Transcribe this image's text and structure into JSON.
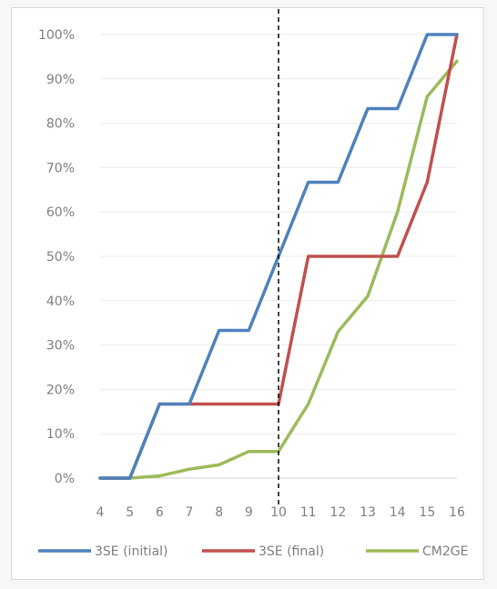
{
  "chart_data": {
    "type": "line",
    "title": "",
    "xlabel": "",
    "ylabel": "",
    "x": [
      4,
      5,
      6,
      7,
      8,
      9,
      10,
      11,
      12,
      13,
      14,
      15,
      16
    ],
    "xlim": [
      4,
      16
    ],
    "ylim": [
      0,
      100
    ],
    "y_ticks": [
      "0%",
      "10%",
      "20%",
      "30%",
      "40%",
      "50%",
      "60%",
      "70%",
      "80%",
      "90%",
      "100%"
    ],
    "x_ticks": [
      "4",
      "5",
      "6",
      "7",
      "8",
      "9",
      "10",
      "11",
      "12",
      "13",
      "14",
      "15",
      "16"
    ],
    "grid": true,
    "legend_position": "bottom",
    "reference_line": {
      "x": 10,
      "style": "dashed",
      "color": "#000000"
    },
    "series": [
      {
        "name": "3SE (initial)",
        "color": "#4f81bd",
        "points": [
          [
            4,
            0
          ],
          [
            5,
            0
          ],
          [
            6,
            16.7
          ],
          [
            7,
            16.7
          ],
          [
            8,
            33.3
          ],
          [
            9,
            33.3
          ],
          [
            10,
            50
          ],
          [
            11,
            66.7
          ],
          [
            12,
            66.7
          ],
          [
            13,
            83.3
          ],
          [
            14,
            83.3
          ],
          [
            15,
            100
          ],
          [
            16,
            100
          ]
        ]
      },
      {
        "name": "3SE (final)",
        "color": "#c0504d",
        "points": [
          [
            4,
            0
          ],
          [
            5,
            0
          ],
          [
            6,
            16.7
          ],
          [
            7,
            16.7
          ],
          [
            8,
            16.7
          ],
          [
            9,
            16.7
          ],
          [
            10,
            16.7
          ],
          [
            11,
            50
          ],
          [
            12,
            50
          ],
          [
            13,
            50
          ],
          [
            14,
            50
          ],
          [
            15,
            66.7
          ],
          [
            16,
            100
          ]
        ]
      },
      {
        "name": "CM2GE",
        "color": "#9bbb59",
        "points": [
          [
            4,
            0
          ],
          [
            5,
            0
          ],
          [
            6,
            0.5
          ],
          [
            7,
            2
          ],
          [
            8,
            3
          ],
          [
            9,
            6
          ],
          [
            10,
            6
          ],
          [
            11,
            16.7
          ],
          [
            12,
            33
          ],
          [
            13,
            41
          ],
          [
            14,
            60
          ],
          [
            15,
            86
          ],
          [
            16,
            94
          ]
        ]
      }
    ]
  }
}
